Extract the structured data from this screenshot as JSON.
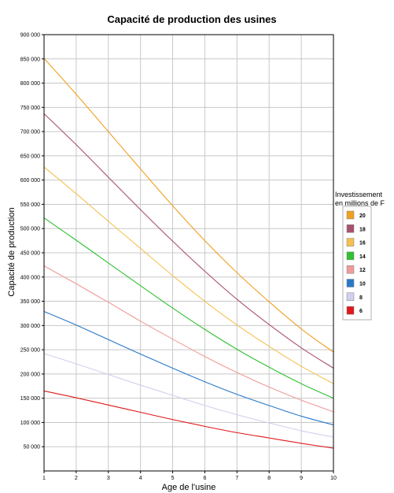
{
  "chart_data": {
    "type": "line",
    "title": "Capacité de production des usines",
    "xlabel": "Age de l'usine",
    "ylabel": "Capacité de production",
    "xlim": [
      1,
      10
    ],
    "ylim": [
      0,
      900000
    ],
    "x_ticks": [
      "1",
      "2",
      "3",
      "4",
      "5",
      "6",
      "7",
      "8",
      "9",
      "10"
    ],
    "y_ticks": [
      {
        "value": 50000,
        "label": "50 000"
      },
      {
        "value": 100000,
        "label": "100 000"
      },
      {
        "value": 150000,
        "label": "150 000"
      },
      {
        "value": 200000,
        "label": "200 000"
      },
      {
        "value": 250000,
        "label": "250 000"
      },
      {
        "value": 300000,
        "label": "300 000"
      },
      {
        "value": 350000,
        "label": "350 000"
      },
      {
        "value": 400000,
        "label": "400 000"
      },
      {
        "value": 450000,
        "label": "450 000"
      },
      {
        "value": 500000,
        "label": "500 000"
      },
      {
        "value": 550000,
        "label": "550 000"
      },
      {
        "value": 600000,
        "label": "600 000"
      },
      {
        "value": 650000,
        "label": "650 000"
      },
      {
        "value": 700000,
        "label": "700 000"
      },
      {
        "value": 750000,
        "label": "750 000"
      },
      {
        "value": 800000,
        "label": "800 000"
      },
      {
        "value": 850000,
        "label": "850 000"
      },
      {
        "value": 900000,
        "label": "900 000"
      }
    ],
    "grid": true,
    "legend": {
      "title_line1": "Investissement",
      "title_line2": "en millions de F",
      "placement": "right"
    },
    "x": [
      1,
      2,
      3,
      4,
      5,
      6,
      7,
      8,
      9,
      10
    ],
    "series": [
      {
        "name": "20",
        "color": "#f0a020",
        "values": [
          851000,
          777000,
          700000,
          623000,
          547000,
          475000,
          409000,
          349000,
          293000,
          245000
        ]
      },
      {
        "name": "18",
        "color": "#a85070",
        "values": [
          737000,
          673000,
          606000,
          539000,
          474000,
          412000,
          354000,
          302000,
          254000,
          212000
        ]
      },
      {
        "name": "16",
        "color": "#f5c050",
        "values": [
          627000,
          572000,
          515000,
          459000,
          403000,
          350000,
          301000,
          257000,
          216000,
          180000
        ]
      },
      {
        "name": "14",
        "color": "#30c030",
        "values": [
          522000,
          476000,
          429000,
          382000,
          336000,
          292000,
          251000,
          214000,
          180000,
          150000
        ]
      },
      {
        "name": "12",
        "color": "#f09a9a",
        "values": [
          423000,
          386000,
          348000,
          309000,
          272000,
          236000,
          203000,
          173000,
          146000,
          122000
        ]
      },
      {
        "name": "10",
        "color": "#2878c8",
        "values": [
          329000,
          301000,
          271000,
          241000,
          212000,
          184000,
          158000,
          135000,
          113000,
          95000
        ]
      },
      {
        "name": "8",
        "color": "#d0d0f0",
        "values": [
          242000,
          221000,
          199000,
          177000,
          156000,
          135000,
          116000,
          99000,
          83000,
          70000
        ]
      },
      {
        "name": "6",
        "color": "#e01818",
        "values": [
          165000,
          151000,
          136000,
          121000,
          106000,
          92000,
          79000,
          68000,
          57000,
          47000
        ]
      }
    ]
  }
}
